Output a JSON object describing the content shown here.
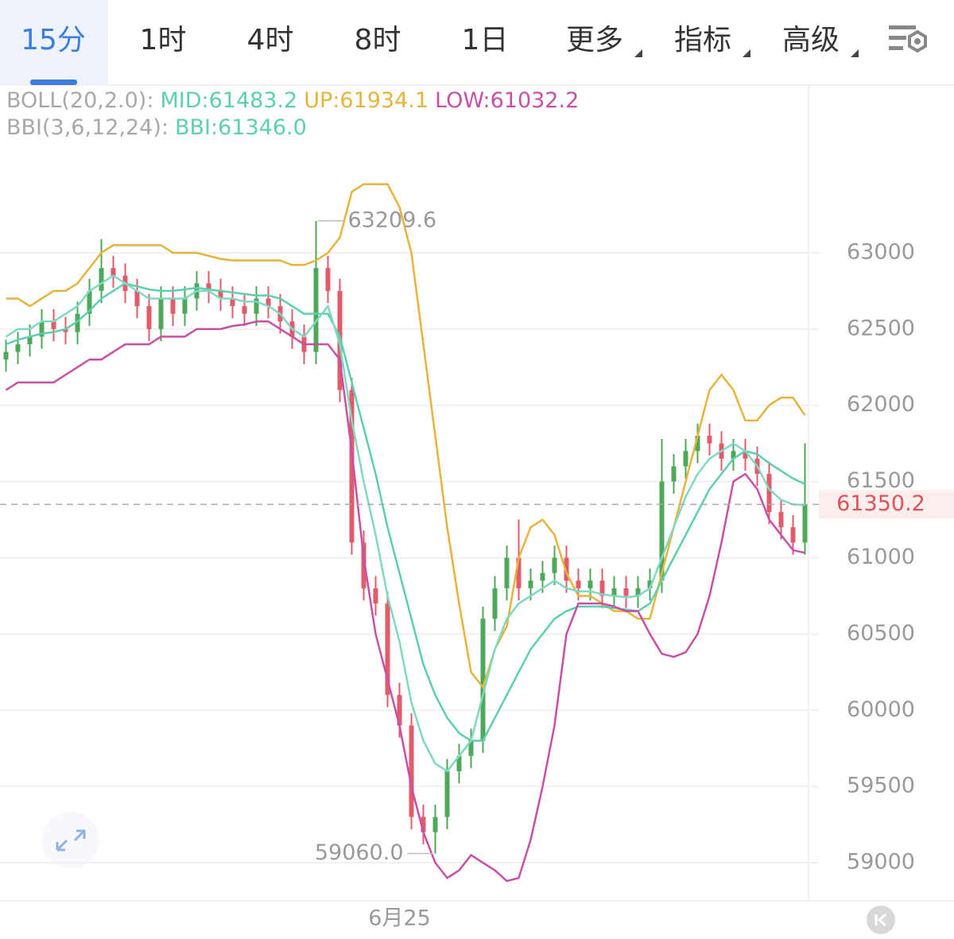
{
  "tabs": [
    "15分",
    "1时",
    "4时",
    "8时",
    "1日",
    "更多",
    "指标",
    "高级"
  ],
  "active_tab": 0,
  "dropdown_tabs": [
    5,
    6,
    7
  ],
  "chart_data": {
    "type": "candlestick",
    "legend": {
      "rows": [
        [
          {
            "text": "BOLL(20,2.0):",
            "color": "#a8a8a8"
          },
          {
            "text": "MID:61483.2",
            "color": "#5ccfb0"
          },
          {
            "text": "UP:61934.1",
            "color": "#e8b339"
          },
          {
            "text": "LOW:61032.2",
            "color": "#c94fa5"
          }
        ],
        [
          {
            "text": "BBI(3,6,12,24):",
            "color": "#a8a8a8"
          },
          {
            "text": "BBI:61346.0",
            "color": "#5ccfb0"
          }
        ]
      ]
    },
    "categories": [
      null,
      null,
      null,
      null,
      null,
      null,
      null,
      null,
      null,
      null,
      null,
      null,
      null,
      null,
      null,
      null,
      null,
      null,
      null,
      null,
      null,
      null,
      null,
      null,
      null,
      null,
      null,
      null,
      null,
      null,
      null,
      null,
      null,
      "6月25",
      null,
      null,
      null,
      null,
      null,
      null,
      null,
      null,
      null,
      null,
      null,
      null,
      null,
      null,
      null,
      null,
      null,
      null,
      null,
      null,
      null,
      null,
      null,
      null,
      null,
      null,
      null,
      null,
      null,
      null,
      null,
      null,
      null,
      null
    ],
    "open": [
      62300,
      62350,
      62400,
      62450,
      62550,
      62500,
      62480,
      62600,
      62750,
      62900,
      62850,
      62750,
      62650,
      62500,
      62700,
      62600,
      62700,
      62800,
      62750,
      62700,
      62650,
      62600,
      62700,
      62650,
      62550,
      62450,
      62350,
      62900,
      62750,
      62100,
      61100,
      60800,
      60700,
      60100,
      59900,
      59300,
      59200,
      59300,
      59600,
      59700,
      59800,
      60600,
      60800,
      61000,
      60800,
      60850,
      60900,
      61000,
      60850,
      60800,
      60850,
      60750,
      60800,
      60750,
      60800,
      60850,
      61500,
      61600,
      61700,
      61800,
      61750,
      61650,
      61700,
      61650,
      61550,
      61300,
      61200,
      61100
    ],
    "high": [
      62430,
      62480,
      62530,
      62630,
      62630,
      62580,
      62680,
      62830,
      63090,
      62980,
      62930,
      62830,
      62730,
      62780,
      62780,
      62780,
      62880,
      62880,
      62830,
      62780,
      62730,
      62780,
      62780,
      62730,
      62630,
      62530,
      63209.6,
      62980,
      62830,
      62180,
      61180,
      60880,
      60780,
      60180,
      59980,
      59380,
      59380,
      59680,
      59780,
      59880,
      60680,
      60880,
      61080,
      61250,
      60930,
      60980,
      61080,
      61080,
      60930,
      60930,
      60930,
      60880,
      60880,
      60880,
      60930,
      61780,
      61680,
      61780,
      61880,
      61880,
      61830,
      61780,
      61780,
      61730,
      61630,
      61380,
      61280,
      61750
    ],
    "low": [
      62220,
      62270,
      62320,
      62370,
      62420,
      62400,
      62400,
      62520,
      62670,
      62770,
      62670,
      62570,
      62420,
      62420,
      62520,
      62520,
      62620,
      62670,
      62620,
      62570,
      62520,
      62520,
      62570,
      62470,
      62370,
      62270,
      62270,
      62670,
      62020,
      61020,
      60720,
      60620,
      60020,
      59820,
      59220,
      59120,
      59060.0,
      59220,
      59520,
      59620,
      59720,
      60520,
      60720,
      60720,
      60720,
      60770,
      60820,
      60770,
      60720,
      60720,
      60670,
      60670,
      60670,
      60670,
      60720,
      60770,
      61420,
      61520,
      61620,
      61670,
      61570,
      61570,
      61570,
      61470,
      61220,
      61120,
      61020,
      61020
    ],
    "close": [
      62350,
      62400,
      62450,
      62550,
      62500,
      62480,
      62600,
      62750,
      62900,
      62850,
      62750,
      62650,
      62500,
      62700,
      62600,
      62700,
      62800,
      62750,
      62700,
      62650,
      62600,
      62700,
      62650,
      62550,
      62450,
      62350,
      62900,
      62750,
      62100,
      61100,
      60800,
      60700,
      60100,
      59900,
      59300,
      59200,
      59300,
      59600,
      59700,
      59800,
      60600,
      60800,
      61000,
      60800,
      60850,
      60900,
      61000,
      60850,
      60800,
      60850,
      60750,
      60800,
      60750,
      60800,
      60850,
      61500,
      61600,
      61700,
      61800,
      61750,
      61650,
      61700,
      61650,
      61550,
      61300,
      61200,
      61100,
      61350.2
    ],
    "up_color": "#4da85a",
    "down_color": "#e05c6a",
    "indicators": [
      {
        "color": "#e8b339",
        "values": [
          62700,
          62700,
          62650,
          62700,
          62750,
          62750,
          62800,
          62900,
          63000,
          63050,
          63050,
          63050,
          63050,
          63050,
          63000,
          63000,
          63000,
          62980,
          62960,
          62950,
          62950,
          62950,
          62950,
          62950,
          62920,
          62920,
          62950,
          63000,
          63100,
          63400,
          63450,
          63450,
          63450,
          63300,
          63000,
          62400,
          61800,
          61200,
          60700,
          60250,
          60150,
          60400,
          60550,
          61000,
          61200,
          61250,
          61150,
          60900,
          60750,
          60750,
          60700,
          60650,
          60650,
          60600,
          60600,
          60900,
          61200,
          61500,
          61800,
          62100,
          62200,
          62100,
          61900,
          61900,
          62000,
          62050,
          62050,
          61934.1
        ]
      },
      {
        "color": "#5ccfb0",
        "values": [
          62400,
          62430,
          62450,
          62470,
          62480,
          62500,
          62550,
          62620,
          62700,
          62750,
          62800,
          62780,
          62760,
          62750,
          62750,
          62760,
          62770,
          62760,
          62750,
          62740,
          62730,
          62720,
          62720,
          62700,
          62650,
          62600,
          62600,
          62600,
          62450,
          62150,
          61850,
          61550,
          61200,
          60900,
          60600,
          60300,
          60100,
          59950,
          59850,
          59800,
          59800,
          59950,
          60100,
          60250,
          60400,
          60500,
          60600,
          60650,
          60680,
          60680,
          60680,
          60670,
          60660,
          60650,
          60700,
          60850,
          61000,
          61150,
          61300,
          61450,
          61550,
          61650,
          61700,
          61680,
          61620,
          61570,
          61520,
          61483.2
        ]
      },
      {
        "color": "#c94fa5",
        "values": [
          62100,
          62150,
          62150,
          62150,
          62150,
          62200,
          62250,
          62300,
          62300,
          62350,
          62400,
          62400,
          62400,
          62450,
          62450,
          62450,
          62500,
          62500,
          62500,
          62520,
          62530,
          62550,
          62550,
          62500,
          62450,
          62400,
          62400,
          62400,
          62300,
          61700,
          61000,
          60500,
          60200,
          59900,
          59500,
          59200,
          59000,
          58900,
          58950,
          59050,
          59000,
          58950,
          58880,
          58900,
          59150,
          59500,
          59900,
          60500,
          60700,
          60700,
          60700,
          60680,
          60650,
          60650,
          60500,
          60370,
          60350,
          60380,
          60500,
          60750,
          61100,
          61500,
          61550,
          61450,
          61250,
          61150,
          61050,
          61032.2
        ]
      },
      {
        "color": "#7fd8c2",
        "values": [
          62450,
          62500,
          62500,
          62550,
          62550,
          62600,
          62650,
          62750,
          62800,
          62850,
          62800,
          62750,
          62700,
          62700,
          62700,
          62700,
          62750,
          62750,
          62700,
          62700,
          62680,
          62680,
          62650,
          62600,
          62500,
          62450,
          62550,
          62650,
          62400,
          61900,
          61500,
          61150,
          60750,
          60450,
          60050,
          59800,
          59650,
          59600,
          59700,
          59800,
          60100,
          60400,
          60600,
          60700,
          60750,
          60800,
          60850,
          60800,
          60780,
          60780,
          60760,
          60750,
          60740,
          60750,
          60800,
          61000,
          61200,
          61400,
          61550,
          61650,
          61700,
          61750,
          61700,
          61600,
          61450,
          61380,
          61350,
          61346.0
        ]
      }
    ],
    "annotations": [
      {
        "index": 26,
        "value": 63209.6,
        "label": "63209.6"
      },
      {
        "index": 36,
        "value": 59060.0,
        "label": "59060.0"
      }
    ],
    "last_price": {
      "value": 61350.2,
      "label": "61350.2"
    },
    "ylim": [
      58750,
      64100
    ],
    "yticks": [
      59000,
      59500,
      60000,
      60500,
      61000,
      61500,
      62000,
      62500,
      63000
    ],
    "grid": true
  }
}
